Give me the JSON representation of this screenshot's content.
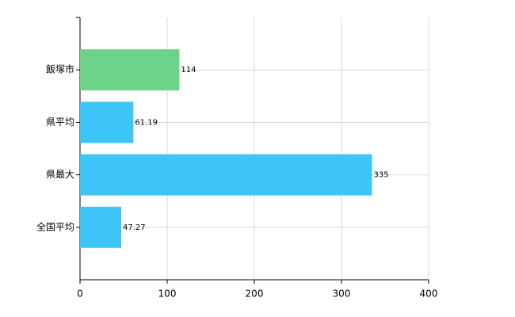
{
  "chart_data": {
    "type": "hbar",
    "categories": [
      "飯塚市",
      "県平均",
      "県最大",
      "全国平均"
    ],
    "values": [
      114,
      61.19,
      335,
      47.27
    ],
    "colors": [
      "#6cd389",
      "#3ec5f7",
      "#3ec5f7",
      "#3ec5f7"
    ],
    "xlim": [
      0,
      400
    ],
    "xticks": [
      0,
      100,
      200,
      300,
      400
    ],
    "grid": true
  }
}
